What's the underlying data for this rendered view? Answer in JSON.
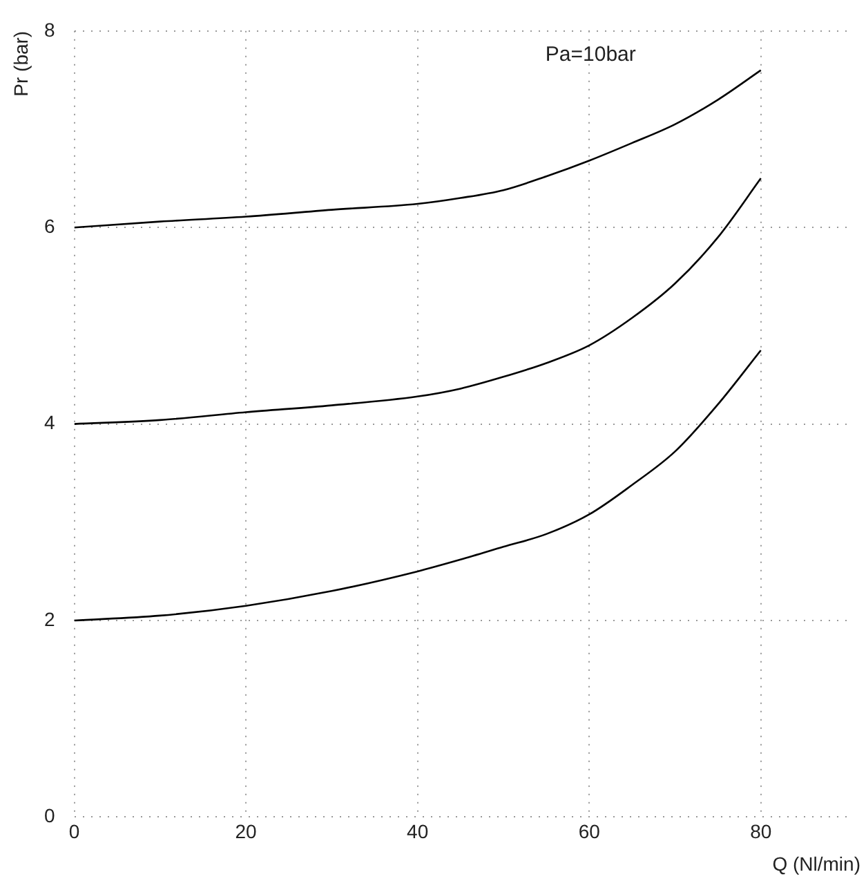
{
  "chart_data": {
    "type": "line",
    "xlabel": "Q (Nl/min)",
    "ylabel": "Pr (bar)",
    "annotations": [
      "Pa=10bar"
    ],
    "x": [
      0,
      10,
      20,
      30,
      40,
      45,
      50,
      55,
      60,
      65,
      70,
      75,
      80
    ],
    "series": [
      {
        "color": "#000000",
        "values": [
          6.0,
          6.06,
          6.11,
          6.18,
          6.24,
          6.3,
          6.38,
          6.52,
          6.68,
          6.86,
          7.05,
          7.3,
          7.6
        ]
      },
      {
        "color": "#000000",
        "values": [
          4.0,
          4.04,
          4.12,
          4.19,
          4.28,
          4.36,
          4.48,
          4.62,
          4.8,
          5.08,
          5.43,
          5.9,
          6.5
        ]
      },
      {
        "color": "#000000",
        "values": [
          2.0,
          2.05,
          2.15,
          2.3,
          2.5,
          2.62,
          2.75,
          2.88,
          3.08,
          3.38,
          3.72,
          4.2,
          4.75
        ]
      }
    ],
    "xlim": [
      0,
      90
    ],
    "xticks": [
      0,
      20,
      40,
      60,
      80
    ],
    "ylim": [
      0,
      8
    ],
    "yticks": [
      0,
      2,
      4,
      6,
      8
    ],
    "grid": true,
    "legend": false,
    "marker": "none",
    "line_style": "solid"
  }
}
